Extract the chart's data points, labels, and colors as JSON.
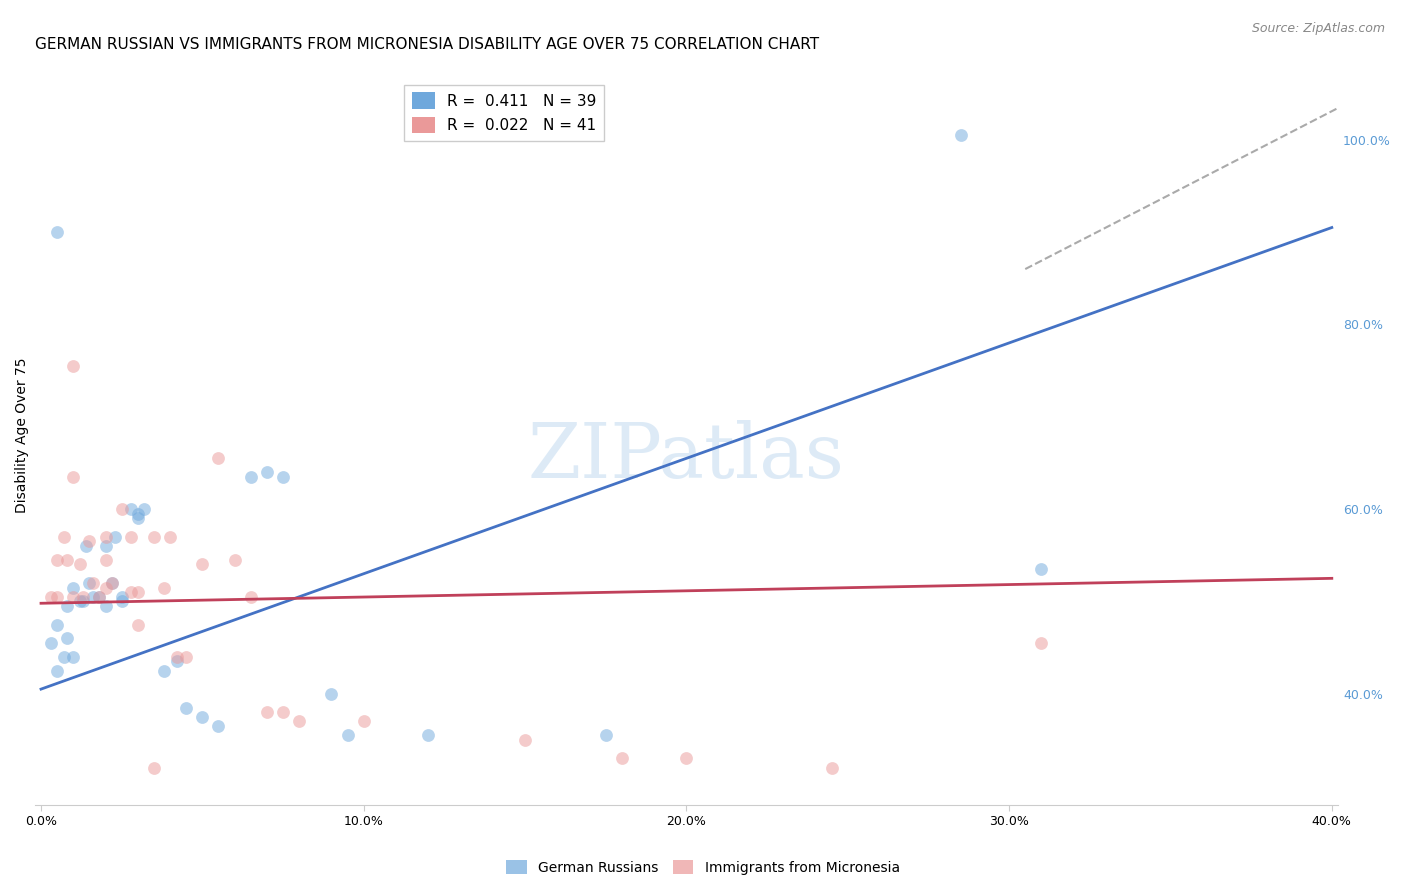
{
  "title": "GERMAN RUSSIAN VS IMMIGRANTS FROM MICRONESIA DISABILITY AGE OVER 75 CORRELATION CHART",
  "source": "Source: ZipAtlas.com",
  "ylabel": "Disability Age Over 75",
  "xlim": [
    -0.002,
    0.402
  ],
  "ylim": [
    0.28,
    1.08
  ],
  "ytick_vals": [
    0.4,
    0.6,
    0.8,
    1.0
  ],
  "ytick_labels": [
    "40.0%",
    "60.0%",
    "80.0%",
    "100.0%"
  ],
  "xtick_vals": [
    0.0,
    0.1,
    0.2,
    0.3,
    0.4
  ],
  "xtick_labels": [
    "0.0%",
    "10.0%",
    "20.0%",
    "30.0%",
    "40.0%"
  ],
  "legend_entries": [
    {
      "label": "R =  0.411   N = 39",
      "color": "#6fa8dc"
    },
    {
      "label": "R =  0.022   N = 41",
      "color": "#ea9999"
    }
  ],
  "legend_labels_bottom": [
    "German Russians",
    "Immigrants from Micronesia"
  ],
  "watermark": "ZIPatlas",
  "blue_scatter_x": [
    0.003,
    0.005,
    0.005,
    0.007,
    0.008,
    0.008,
    0.01,
    0.01,
    0.012,
    0.013,
    0.014,
    0.015,
    0.016,
    0.018,
    0.02,
    0.02,
    0.022,
    0.023,
    0.025,
    0.025,
    0.028,
    0.03,
    0.032,
    0.038,
    0.042,
    0.045,
    0.05,
    0.055,
    0.065,
    0.07,
    0.075,
    0.09,
    0.095,
    0.12,
    0.175,
    0.285,
    0.31,
    0.005,
    0.03
  ],
  "blue_scatter_y": [
    0.455,
    0.475,
    0.425,
    0.44,
    0.46,
    0.495,
    0.515,
    0.44,
    0.5,
    0.5,
    0.56,
    0.52,
    0.505,
    0.505,
    0.56,
    0.495,
    0.52,
    0.57,
    0.505,
    0.5,
    0.6,
    0.595,
    0.6,
    0.425,
    0.435,
    0.385,
    0.375,
    0.365,
    0.635,
    0.64,
    0.635,
    0.4,
    0.355,
    0.355,
    0.355,
    1.005,
    0.535,
    0.9,
    0.59
  ],
  "pink_scatter_x": [
    0.003,
    0.005,
    0.005,
    0.007,
    0.008,
    0.01,
    0.01,
    0.012,
    0.013,
    0.015,
    0.016,
    0.018,
    0.02,
    0.02,
    0.022,
    0.025,
    0.028,
    0.028,
    0.03,
    0.035,
    0.038,
    0.04,
    0.042,
    0.045,
    0.05,
    0.055,
    0.06,
    0.065,
    0.07,
    0.075,
    0.08,
    0.1,
    0.15,
    0.18,
    0.2,
    0.245,
    0.01,
    0.03,
    0.035,
    0.02,
    0.31
  ],
  "pink_scatter_y": [
    0.505,
    0.545,
    0.505,
    0.57,
    0.545,
    0.635,
    0.505,
    0.54,
    0.505,
    0.565,
    0.52,
    0.505,
    0.545,
    0.57,
    0.52,
    0.6,
    0.51,
    0.57,
    0.51,
    0.57,
    0.515,
    0.57,
    0.44,
    0.44,
    0.54,
    0.655,
    0.545,
    0.505,
    0.38,
    0.38,
    0.37,
    0.37,
    0.35,
    0.33,
    0.33,
    0.32,
    0.755,
    0.475,
    0.32,
    0.515,
    0.455
  ],
  "blue_trendline_x": [
    0.0,
    0.4
  ],
  "blue_trendline_y": [
    0.405,
    0.905
  ],
  "pink_trendline_x": [
    0.0,
    0.4
  ],
  "pink_trendline_y": [
    0.498,
    0.525
  ],
  "dashed_line_x": [
    0.305,
    0.405
  ],
  "dashed_line_y": [
    0.86,
    1.04
  ],
  "blue_color": "#6fa8dc",
  "pink_color": "#ea9999",
  "blue_trendline_color": "#4472c4",
  "pink_trendline_color": "#c0405a",
  "background_color": "#ffffff",
  "grid_color": "#dddddd",
  "title_fontsize": 11,
  "axis_label_fontsize": 10,
  "tick_fontsize": 9,
  "right_axis_color": "#5b9bd5",
  "scatter_size": 85,
  "scatter_alpha": 0.5
}
